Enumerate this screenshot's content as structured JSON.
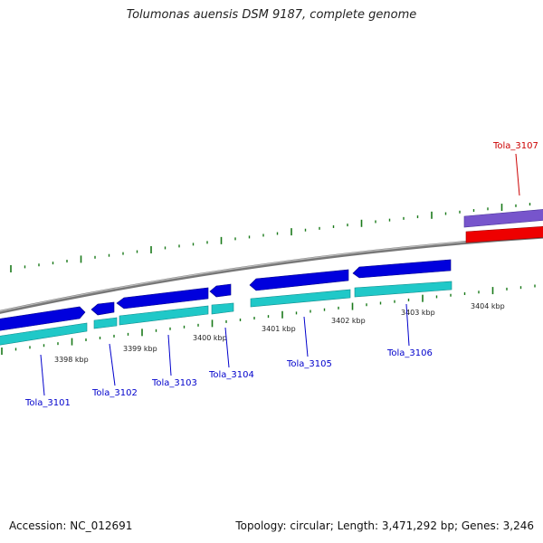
{
  "title": "Tolumonas auensis DSM 9187, complete genome",
  "footer": {
    "accession": "Accession: NC_012691",
    "summary": "Topology: circular; Length: 3,471,292 bp; Genes: 3,246"
  },
  "colors": {
    "forward_cds": "#0000dd",
    "feature_cyan": "#20c8c8",
    "highlight_cds": "#ee0000",
    "highlight_feature": "#7755cc",
    "backbone": "#888888",
    "ticks": "#1a7a1a",
    "label_blue": "#0000cc",
    "label_red": "#cc0000"
  },
  "scale_labels": [
    "3398 kbp",
    "3399 kbp",
    "3400 kbp",
    "3401 kbp",
    "3402 kbp",
    "3403 kbp",
    "3404 kbp"
  ],
  "genes": [
    {
      "id": "Tola_3101",
      "color": "blue"
    },
    {
      "id": "Tola_3102",
      "color": "blue"
    },
    {
      "id": "Tola_3103",
      "color": "blue"
    },
    {
      "id": "Tola_3104",
      "color": "blue"
    },
    {
      "id": "Tola_3105",
      "color": "blue"
    },
    {
      "id": "Tola_3106",
      "color": "blue"
    },
    {
      "id": "Tola_3107",
      "color": "red"
    }
  ]
}
